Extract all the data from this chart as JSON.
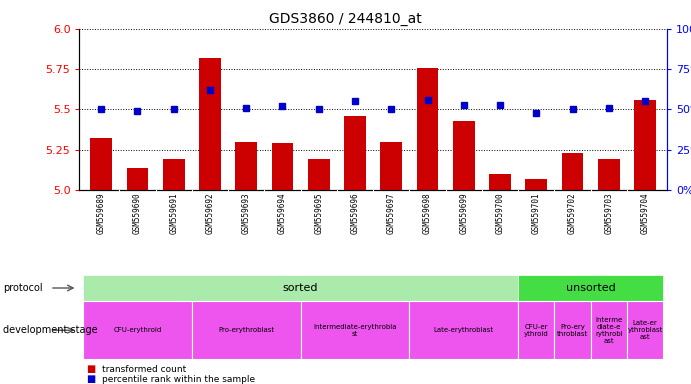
{
  "title": "GDS3860 / 244810_at",
  "samples": [
    "GSM559689",
    "GSM559690",
    "GSM559691",
    "GSM559692",
    "GSM559693",
    "GSM559694",
    "GSM559695",
    "GSM559696",
    "GSM559697",
    "GSM559698",
    "GSM559699",
    "GSM559700",
    "GSM559701",
    "GSM559702",
    "GSM559703",
    "GSM559704"
  ],
  "bar_values": [
    5.32,
    5.14,
    5.19,
    5.82,
    5.3,
    5.29,
    5.19,
    5.46,
    5.3,
    5.76,
    5.43,
    5.1,
    5.07,
    5.23,
    5.19,
    5.56
  ],
  "percentile_values": [
    50,
    49,
    50,
    62,
    51,
    52,
    50,
    55,
    50,
    56,
    53,
    53,
    48,
    50,
    51,
    55
  ],
  "bar_base": 5.0,
  "ylim_left": [
    5.0,
    6.0
  ],
  "ylim_right": [
    0,
    100
  ],
  "left_ticks": [
    5.0,
    5.25,
    5.5,
    5.75,
    6.0
  ],
  "right_ticks": [
    0,
    25,
    50,
    75,
    100
  ],
  "bar_color": "#cc0000",
  "marker_color": "#0000cc",
  "chart_bg_color": "#ffffff",
  "xtick_bg_color": "#d8d8d8",
  "protocol_sorted_color": "#aaeaaa",
  "protocol_unsorted_color": "#44dd44",
  "dev_stage_color": "#ee55ee",
  "protocol_sorted_label": "sorted",
  "protocol_unsorted_label": "unsorted",
  "protocol_label": "protocol",
  "dev_stage_label": "development stage",
  "legend_bar": "transformed count",
  "legend_marker": "percentile rank within the sample",
  "dev_groups_sorted": [
    {
      "label": "CFU-erythroid",
      "start": 0,
      "end": 2
    },
    {
      "label": "Pro-erythroblast",
      "start": 3,
      "end": 5
    },
    {
      "label": "Intermediate-erythrobla\nst",
      "start": 6,
      "end": 8
    },
    {
      "label": "Late-erythroblast",
      "start": 9,
      "end": 11
    }
  ],
  "dev_groups_unsorted": [
    {
      "label": "CFU-er\nythroid",
      "start": 12,
      "end": 12
    },
    {
      "label": "Pro-ery\nthroblast",
      "start": 13,
      "end": 13
    },
    {
      "label": "Interme\ndiate-e\nrythrobl\nast",
      "start": 14,
      "end": 14
    },
    {
      "label": "Late-er\nythroblast\nast",
      "start": 15,
      "end": 15
    }
  ]
}
